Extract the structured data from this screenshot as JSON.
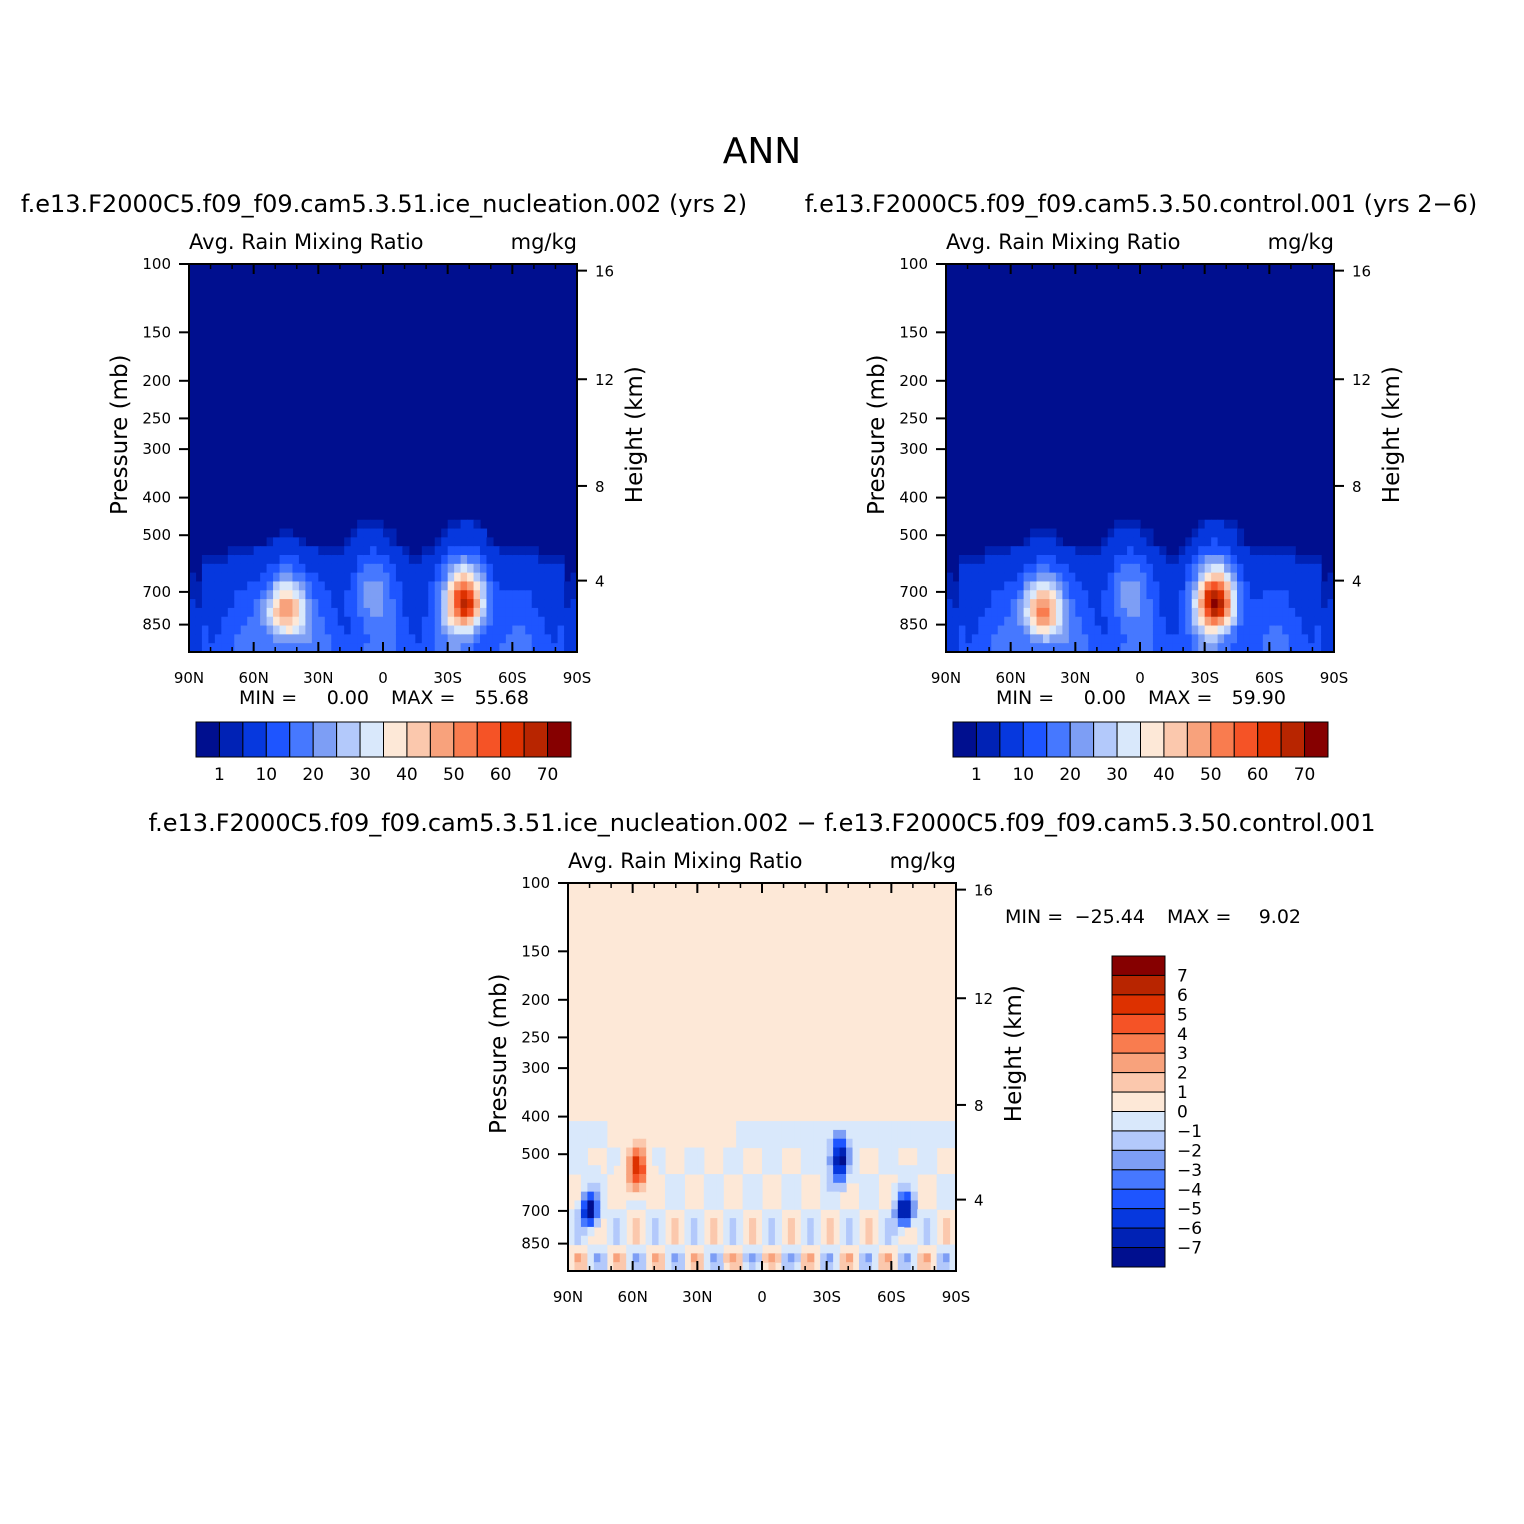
{
  "figure_title": "ANN",
  "colors": {
    "abs_levels": [
      "#000f8f",
      "#0022b5",
      "#0638de",
      "#1e55ff",
      "#4678ff",
      "#7d9ef5",
      "#b3c9fb",
      "#d9e8fb",
      "#fde8d7",
      "#fbc8ad",
      "#f8a27c",
      "#f97c4f",
      "#f55326",
      "#dd3100",
      "#b82500",
      "#860000"
    ],
    "diff_levels": [
      "#000f8f",
      "#0022b5",
      "#0638de",
      "#1e55ff",
      "#4678ff",
      "#7d9ef5",
      "#b3c9fb",
      "#d9e8fb",
      "#fde8d7",
      "#fbc8ad",
      "#f8a27c",
      "#f97c4f",
      "#f55326",
      "#dd3100",
      "#b82500",
      "#860000"
    ]
  },
  "chart_data": [
    {
      "type": "heatmap",
      "panel": "top-left",
      "case_title": "f.e13.F2000C5.f09_f09.cam5.3.51.ice_nucleation.002 (yrs 2)",
      "variable": "Avg. Rain Mixing Ratio",
      "units": "mg/kg",
      "ylabel": "Pressure (mb)",
      "ylabel_right": "Height (km)",
      "x_ticks": [
        "90N",
        "60N",
        "30N",
        "0",
        "30S",
        "60S",
        "90S"
      ],
      "y_ticks": [
        "100",
        "150",
        "200",
        "250",
        "300",
        "400",
        "500",
        "700",
        "850"
      ],
      "y_ticks_right": [
        "16",
        "12",
        "8",
        "4"
      ],
      "ylim": [
        100,
        1000
      ],
      "min_label": "MIN =",
      "min": "0.00",
      "max_label": "MAX =",
      "max": "55.68",
      "colorbar_labels": [
        "1",
        "10",
        "20",
        "30",
        "40",
        "50",
        "60",
        "70"
      ],
      "features": [
        {
          "lat": 45,
          "p": 780,
          "value": 42
        },
        {
          "lat": 5,
          "p": 700,
          "value": 14
        },
        {
          "lat": -38,
          "p": 740,
          "value": 55.68
        }
      ]
    },
    {
      "type": "heatmap",
      "panel": "top-right",
      "case_title": "f.e13.F2000C5.f09_f09.cam5.3.50.control.001 (yrs 2-6)",
      "variable": "Avg. Rain Mixing Ratio",
      "units": "mg/kg",
      "ylabel": "Pressure (mb)",
      "ylabel_right": "Height (km)",
      "x_ticks": [
        "90N",
        "60N",
        "30N",
        "0",
        "30S",
        "60S",
        "90S"
      ],
      "y_ticks": [
        "100",
        "150",
        "200",
        "250",
        "300",
        "400",
        "500",
        "700",
        "850"
      ],
      "y_ticks_right": [
        "16",
        "12",
        "8",
        "4"
      ],
      "ylim": [
        100,
        1000
      ],
      "min_label": "MIN =",
      "min": "0.00",
      "max_label": "MAX =",
      "max": "59.90",
      "colorbar_labels": [
        "1",
        "10",
        "20",
        "30",
        "40",
        "50",
        "60",
        "70"
      ],
      "features": [
        {
          "lat": 45,
          "p": 780,
          "value": 44
        },
        {
          "lat": 5,
          "p": 700,
          "value": 14
        },
        {
          "lat": -35,
          "p": 740,
          "value": 59.9
        }
      ]
    },
    {
      "type": "heatmap",
      "panel": "bottom",
      "case_title": "f.e13.F2000C5.f09_f09.cam5.3.51.ice_nucleation.002 - f.e13.F2000C5.f09_f09.cam5.3.50.control.001",
      "variable": "Avg. Rain Mixing Ratio",
      "units": "mg/kg",
      "ylabel": "Pressure (mb)",
      "ylabel_right": "Height (km)",
      "x_ticks": [
        "90N",
        "60N",
        "30N",
        "0",
        "30S",
        "60S",
        "90S"
      ],
      "y_ticks": [
        "100",
        "150",
        "200",
        "250",
        "300",
        "400",
        "500",
        "700",
        "850"
      ],
      "y_ticks_right": [
        "16",
        "12",
        "8",
        "4"
      ],
      "ylim": [
        100,
        1000
      ],
      "min_label": "MIN =",
      "min": "-25.44",
      "max_label": "MAX =",
      "max": "9.02",
      "colorbar_labels": [
        "7",
        "6",
        "5",
        "4",
        "3",
        "2",
        "1",
        "0",
        "-1",
        "-2",
        "-3",
        "-4",
        "-5",
        "-6",
        "-7"
      ],
      "features": [
        {
          "lat": 58,
          "p": 550,
          "value": 9.02
        },
        {
          "lat": -36,
          "p": 520,
          "value": -25.44
        },
        {
          "lat": 80,
          "p": 700,
          "value": -8
        },
        {
          "lat": -66,
          "p": 700,
          "value": -7
        }
      ]
    }
  ]
}
